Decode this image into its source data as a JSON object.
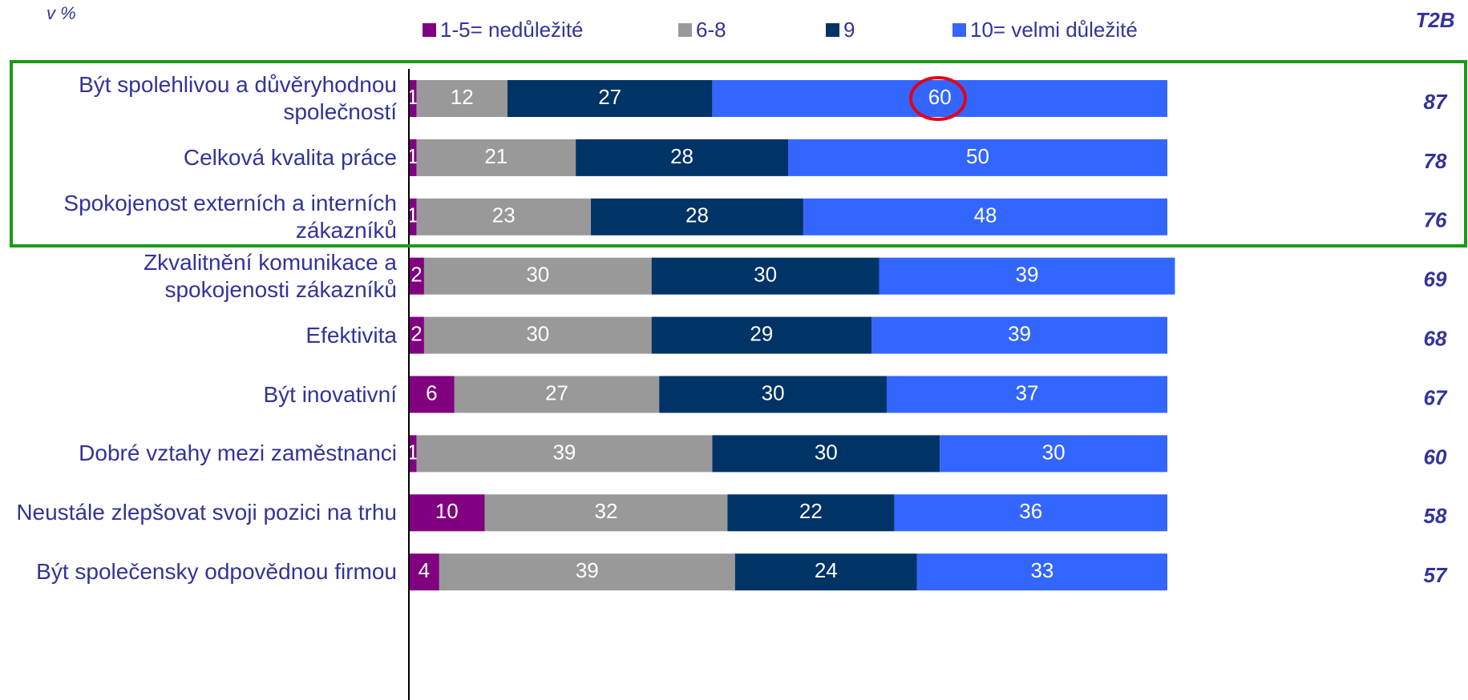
{
  "chart_data": {
    "type": "stacked-bar-horizontal",
    "annotation": "v %",
    "categories": [
      "Být spolehlivou a důvěryhodnou společností",
      "Celková kvalita práce",
      "Spokojenost externích a interních zákazníků",
      "Zkvalitnění komunikace a spokojenosti zákazníků",
      "Efektivita",
      "Být inovativní",
      "Dobré vztahy mezi zaměstnanci",
      "Neustále zlepšovat svoji pozici na trhu",
      "Být společensky odpovědnou firmou"
    ],
    "series": [
      {
        "name": "1-5= nedůležité",
        "color": "#800080",
        "values": [
          1,
          1,
          1,
          2,
          2,
          6,
          1,
          10,
          4
        ]
      },
      {
        "name": "6-8",
        "color": "#999999",
        "values": [
          12,
          21,
          23,
          30,
          30,
          27,
          39,
          32,
          39
        ]
      },
      {
        "name": "9",
        "color": "#003366",
        "values": [
          27,
          28,
          28,
          30,
          29,
          30,
          30,
          22,
          24
        ]
      },
      {
        "name": "10= velmi důležité",
        "color": "#3366ff",
        "values": [
          60,
          50,
          48,
          39,
          39,
          37,
          30,
          36,
          33
        ]
      }
    ],
    "t2b": {
      "label": "T2B",
      "values": [
        87,
        78,
        76,
        69,
        68,
        67,
        60,
        58,
        57
      ]
    },
    "xlim": [
      0,
      100
    ]
  }
}
